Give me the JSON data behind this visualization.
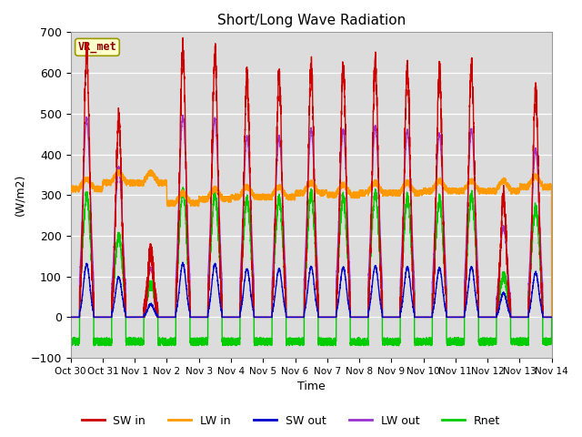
{
  "title": "Short/Long Wave Radiation",
  "ylabel": "(W/m2)",
  "xlabel": "Time",
  "ylim": [
    -100,
    700
  ],
  "xlim_days": [
    0,
    15
  ],
  "annotation": "VR_met",
  "background_color": "#dcdcdc",
  "legend": {
    "SW in": {
      "color": "#cc0000",
      "lw": 1.0
    },
    "LW in": {
      "color": "#ff9900",
      "lw": 1.0
    },
    "SW out": {
      "color": "#0000cc",
      "lw": 1.0
    },
    "LW out": {
      "color": "#9933cc",
      "lw": 1.0
    },
    "Rnet": {
      "color": "#00cc00",
      "lw": 1.0
    }
  },
  "xtick_labels": [
    "Oct 30",
    "Oct 31",
    "Nov 1",
    "Nov 2",
    "Nov 3",
    "Nov 4",
    "Nov 5",
    "Nov 6",
    "Nov 7",
    "Nov 8",
    "Nov 9",
    "Nov 10",
    "Nov 11",
    "Nov 12",
    "Nov 13",
    "Nov 14"
  ],
  "xtick_positions": [
    0,
    1,
    2,
    3,
    4,
    5,
    6,
    7,
    8,
    9,
    10,
    11,
    12,
    13,
    14,
    15
  ],
  "SW_in_peaks": [
    650,
    490,
    160,
    660,
    650,
    590,
    590,
    615,
    610,
    625,
    610,
    600,
    615,
    295,
    550
  ],
  "day_start": 0.28,
  "day_end": 0.72
}
